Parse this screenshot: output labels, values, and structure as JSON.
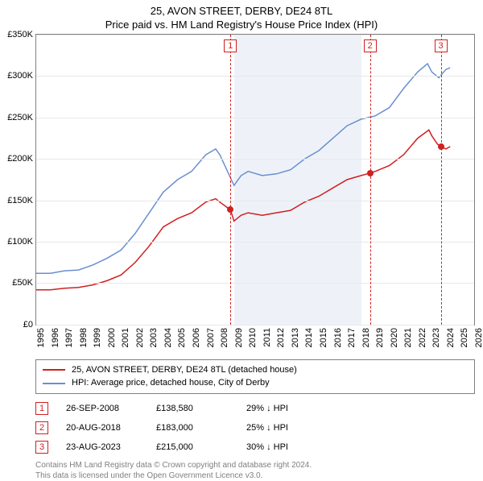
{
  "title": "25, AVON STREET, DERBY, DE24 8TL",
  "subtitle": "Price paid vs. HM Land Registry's House Price Index (HPI)",
  "chart": {
    "type": "line",
    "background_color": "#ffffff",
    "grid_color": "#e8e8e8",
    "border_color": "#808080",
    "x_years": [
      1995,
      1996,
      1997,
      1998,
      1999,
      2000,
      2001,
      2002,
      2003,
      2004,
      2005,
      2006,
      2007,
      2008,
      2009,
      2010,
      2011,
      2012,
      2013,
      2014,
      2015,
      2016,
      2017,
      2018,
      2019,
      2020,
      2021,
      2022,
      2023,
      2024,
      2025,
      2026
    ],
    "y_ticks": [
      0,
      50000,
      100000,
      150000,
      200000,
      250000,
      300000,
      350000
    ],
    "y_tick_labels": [
      "£0",
      "£50K",
      "£100K",
      "£150K",
      "£200K",
      "£250K",
      "£300K",
      "£350K"
    ],
    "ylim": [
      0,
      350000
    ],
    "xlim": [
      1995,
      2026
    ],
    "shaded_band": {
      "from_year": 2009,
      "to_year": 2018,
      "color": "#eef2f8"
    },
    "series": [
      {
        "name": "25, AVON STREET, DERBY, DE24 8TL (detached house)",
        "color": "#d02020",
        "line_width": 1.5,
        "points": [
          [
            1995,
            42000
          ],
          [
            1996,
            42000
          ],
          [
            1997,
            44000
          ],
          [
            1998,
            45000
          ],
          [
            1999,
            48000
          ],
          [
            2000,
            53000
          ],
          [
            2001,
            60000
          ],
          [
            2002,
            75000
          ],
          [
            2003,
            95000
          ],
          [
            2004,
            118000
          ],
          [
            2005,
            128000
          ],
          [
            2006,
            135000
          ],
          [
            2007,
            148000
          ],
          [
            2007.7,
            152000
          ],
          [
            2008,
            148000
          ],
          [
            2008.75,
            138580
          ],
          [
            2009,
            125000
          ],
          [
            2009.5,
            132000
          ],
          [
            2010,
            135000
          ],
          [
            2011,
            132000
          ],
          [
            2012,
            135000
          ],
          [
            2013,
            138000
          ],
          [
            2014,
            148000
          ],
          [
            2015,
            155000
          ],
          [
            2016,
            165000
          ],
          [
            2017,
            175000
          ],
          [
            2018,
            180000
          ],
          [
            2018.63,
            183000
          ],
          [
            2019,
            185000
          ],
          [
            2020,
            192000
          ],
          [
            2021,
            205000
          ],
          [
            2022,
            225000
          ],
          [
            2022.8,
            235000
          ],
          [
            2023,
            228000
          ],
          [
            2023.4,
            218000
          ],
          [
            2023.64,
            215000
          ],
          [
            2024,
            212000
          ],
          [
            2024.3,
            215000
          ]
        ]
      },
      {
        "name": "HPI: Average price, detached house, City of Derby",
        "color": "#6a8fcf",
        "line_width": 1.5,
        "points": [
          [
            1995,
            62000
          ],
          [
            1996,
            62000
          ],
          [
            1997,
            65000
          ],
          [
            1998,
            66000
          ],
          [
            1999,
            72000
          ],
          [
            2000,
            80000
          ],
          [
            2001,
            90000
          ],
          [
            2002,
            110000
          ],
          [
            2003,
            135000
          ],
          [
            2004,
            160000
          ],
          [
            2005,
            175000
          ],
          [
            2006,
            185000
          ],
          [
            2007,
            205000
          ],
          [
            2007.7,
            212000
          ],
          [
            2008,
            205000
          ],
          [
            2009,
            168000
          ],
          [
            2009.5,
            180000
          ],
          [
            2010,
            185000
          ],
          [
            2011,
            180000
          ],
          [
            2012,
            182000
          ],
          [
            2013,
            187000
          ],
          [
            2014,
            200000
          ],
          [
            2015,
            210000
          ],
          [
            2016,
            225000
          ],
          [
            2017,
            240000
          ],
          [
            2018,
            248000
          ],
          [
            2019,
            252000
          ],
          [
            2020,
            262000
          ],
          [
            2021,
            285000
          ],
          [
            2022,
            305000
          ],
          [
            2022.7,
            315000
          ],
          [
            2023,
            305000
          ],
          [
            2023.5,
            298000
          ],
          [
            2024,
            308000
          ],
          [
            2024.3,
            310000
          ]
        ]
      }
    ],
    "sale_markers": [
      {
        "n": "1",
        "year": 2008.75,
        "price": 138580
      },
      {
        "n": "2",
        "year": 2018.63,
        "price": 183000
      },
      {
        "n": "3",
        "year": 2023.64,
        "price": 215000
      }
    ],
    "marker_line_color": "#d02020",
    "marker_dot_color": "#d02020"
  },
  "legend": {
    "items": [
      {
        "label": "25, AVON STREET, DERBY, DE24 8TL (detached house)",
        "color": "#d02020"
      },
      {
        "label": "HPI: Average price, detached house, City of Derby",
        "color": "#6a8fcf"
      }
    ]
  },
  "sales_table": {
    "rows": [
      {
        "n": "1",
        "date": "26-SEP-2008",
        "price": "£138,580",
        "delta": "29% ↓ HPI"
      },
      {
        "n": "2",
        "date": "20-AUG-2018",
        "price": "£183,000",
        "delta": "25% ↓ HPI"
      },
      {
        "n": "3",
        "date": "23-AUG-2023",
        "price": "£215,000",
        "delta": "30% ↓ HPI"
      }
    ]
  },
  "attribution": {
    "line1": "Contains HM Land Registry data © Crown copyright and database right 2024.",
    "line2": "This data is licensed under the Open Government Licence v3.0."
  },
  "label_fontsize": 11,
  "title_fontsize": 13
}
